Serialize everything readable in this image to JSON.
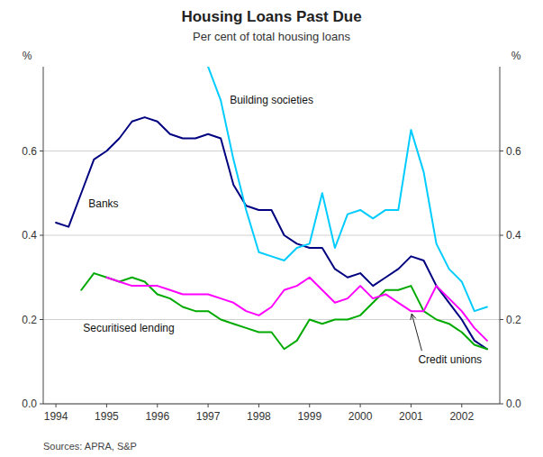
{
  "chart_data": {
    "type": "line",
    "title": "Housing Loans Past Due",
    "subtitle": "Per cent of total housing loans",
    "source": "Sources: APRA, S&P",
    "ylabel": "%",
    "y2label": "%",
    "xlim": [
      1993.75,
      2002.75
    ],
    "xticks": [
      1994,
      1995,
      1996,
      1997,
      1998,
      1999,
      2000,
      2001,
      2002
    ],
    "ylim": [
      0.0,
      0.8
    ],
    "yticks": [
      {
        "value": 0.0,
        "label": "0.0"
      },
      0.2,
      0.4,
      0.6
    ],
    "y2lim": [
      0.0,
      0.8
    ],
    "y2ticks": [
      {
        "value": 0.0,
        "label": "0.0"
      },
      0.2,
      0.4,
      0.6
    ],
    "grid": true,
    "series": [
      {
        "name": "Banks",
        "color": "#000080",
        "x": [
          1994.0,
          1994.25,
          1994.5,
          1994.75,
          1995.0,
          1995.25,
          1995.5,
          1995.75,
          1996.0,
          1996.25,
          1996.5,
          1996.75,
          1997.0,
          1997.25,
          1997.5,
          1997.75,
          1998.0,
          1998.25,
          1998.5,
          1998.75,
          1999.0,
          1999.25,
          1999.5,
          1999.75,
          2000.0,
          2000.25,
          2000.5,
          2000.75,
          2001.0,
          2001.25,
          2001.5,
          2001.75,
          2002.0,
          2002.25,
          2002.5
        ],
        "values": [
          0.43,
          0.42,
          0.5,
          0.58,
          0.6,
          0.63,
          0.67,
          0.68,
          0.67,
          0.64,
          0.63,
          0.63,
          0.64,
          0.63,
          0.52,
          0.47,
          0.46,
          0.46,
          0.4,
          0.38,
          0.37,
          0.37,
          0.32,
          0.3,
          0.31,
          0.28,
          0.3,
          0.32,
          0.35,
          0.34,
          0.28,
          0.24,
          0.2,
          0.15,
          0.13
        ]
      },
      {
        "name": "Building societies",
        "color": "#00CCFF",
        "x": [
          1997.0,
          1997.25,
          1997.5,
          1997.75,
          1998.0,
          1998.25,
          1998.5,
          1998.75,
          1999.0,
          1999.25,
          1999.5,
          1999.75,
          2000.0,
          2000.25,
          2000.5,
          2000.75,
          2001.0,
          2001.25,
          2001.5,
          2001.75,
          2002.0,
          2002.25,
          2002.5
        ],
        "values": [
          0.8,
          0.72,
          0.58,
          0.46,
          0.36,
          0.35,
          0.34,
          0.37,
          0.38,
          0.5,
          0.37,
          0.45,
          0.46,
          0.44,
          0.46,
          0.46,
          0.65,
          0.55,
          0.38,
          0.32,
          0.29,
          0.22,
          0.23
        ]
      },
      {
        "name": "Securitised lending",
        "color": "#00AA00",
        "x": [
          1994.5,
          1994.75,
          1995.0,
          1995.25,
          1995.5,
          1995.75,
          1996.0,
          1996.25,
          1996.5,
          1996.75,
          1997.0,
          1997.25,
          1997.5,
          1997.75,
          1998.0,
          1998.25,
          1998.5,
          1998.75,
          1999.0,
          1999.25,
          1999.5,
          1999.75,
          2000.0,
          2000.25,
          2000.5,
          2000.75,
          2001.0,
          2001.25,
          2001.5,
          2001.75,
          2002.0,
          2002.25,
          2002.5
        ],
        "values": [
          0.27,
          0.31,
          0.3,
          0.29,
          0.3,
          0.29,
          0.26,
          0.25,
          0.23,
          0.22,
          0.22,
          0.2,
          0.19,
          0.18,
          0.17,
          0.17,
          0.13,
          0.15,
          0.2,
          0.19,
          0.2,
          0.2,
          0.21,
          0.24,
          0.27,
          0.27,
          0.28,
          0.22,
          0.2,
          0.19,
          0.17,
          0.14,
          0.13
        ]
      },
      {
        "name": "Credit unions",
        "color": "#FF00FF",
        "x": [
          1995.0,
          1995.25,
          1995.5,
          1995.75,
          1996.0,
          1996.25,
          1996.5,
          1996.75,
          1997.0,
          1997.25,
          1997.5,
          1997.75,
          1998.0,
          1998.25,
          1998.5,
          1998.75,
          1999.0,
          1999.25,
          1999.5,
          1999.75,
          2000.0,
          2000.25,
          2000.5,
          2000.75,
          2001.0,
          2001.25,
          2001.5,
          2001.75,
          2002.0,
          2002.25,
          2002.5
        ],
        "values": [
          0.3,
          0.29,
          0.28,
          0.28,
          0.28,
          0.27,
          0.26,
          0.26,
          0.26,
          0.25,
          0.24,
          0.22,
          0.21,
          0.23,
          0.27,
          0.28,
          0.3,
          0.27,
          0.24,
          0.25,
          0.28,
          0.25,
          0.26,
          0.24,
          0.22,
          0.22,
          0.28,
          0.25,
          0.22,
          0.18,
          0.15
        ]
      }
    ]
  }
}
